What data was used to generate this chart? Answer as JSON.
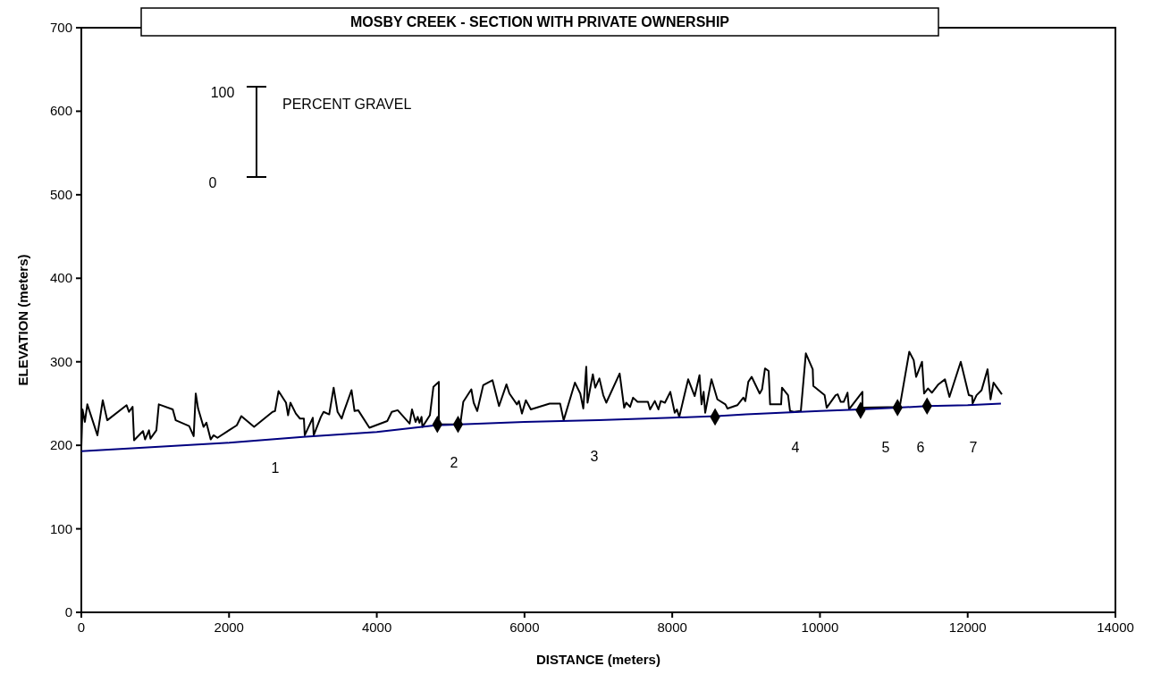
{
  "chart_data": {
    "type": "line",
    "title": "MOSBY CREEK - SECTION WITH PRIVATE OWNERSHIP",
    "xlabel": "DISTANCE (meters)",
    "ylabel": "ELEVATION (meters)",
    "xlim": [
      0,
      14000
    ],
    "xticks": [
      0,
      2000,
      4000,
      6000,
      8000,
      10000,
      12000,
      14000
    ],
    "ylim": [
      0,
      700
    ],
    "yticks": [
      0,
      100,
      200,
      300,
      400,
      500,
      600,
      700
    ],
    "grid": false,
    "series": [
      {
        "color": "#000000",
        "x": [
          0,
          16,
          48,
          81,
          218,
          290,
          351,
          613,
          645,
          694,
          714,
          835,
          863,
          916,
          936,
          1016,
          1049,
          1238,
          1278,
          1460,
          1521,
          1549,
          1581,
          1654,
          1694,
          1751,
          1791,
          1843,
          2105,
          2166,
          2339,
          2589,
          2622,
          2670,
          2771,
          2799,
          2831,
          2904,
          2960,
          3013,
          3025,
          3134,
          3146,
          3243,
          3280,
          3356,
          3416,
          3469,
          3525,
          3557,
          3658,
          3699,
          3748,
          3900,
          4021,
          4142,
          4203,
          4283,
          4445,
          4477,
          4525,
          4554,
          4578,
          4606,
          4618,
          4719,
          4767,
          4840,
          4840,
          5130,
          5171,
          5280,
          5312,
          5360,
          5441,
          5566,
          5655,
          5756,
          5796,
          5897,
          5925,
          5965,
          6018,
          6086,
          6340,
          6482,
          6530,
          6683,
          6755,
          6796,
          6836,
          6853,
          6925,
          6958,
          7014,
          7066,
          7107,
          7288,
          7349,
          7377,
          7429,
          7470,
          7530,
          7671,
          7700,
          7764,
          7813,
          7845,
          7901,
          7974,
          8034,
          8063,
          8095,
          8216,
          8304,
          8369,
          8397,
          8425,
          8446,
          8531,
          8611,
          8720,
          8748,
          8881,
          8962,
          8990,
          9030,
          9075,
          9184,
          9216,
          9256,
          9305,
          9325,
          9474,
          9486,
          9568,
          9595,
          9648,
          9741,
          9809,
          9902,
          9910,
          10063,
          10091,
          10212,
          10240,
          10281,
          10321,
          10373,
          10394,
          10575,
          10575,
          11080,
          11209,
          11269,
          11302,
          11382,
          11410,
          11463,
          11515,
          11604,
          11692,
          11753,
          11906,
          12015,
          12060,
          12067,
          12120,
          12188,
          12269,
          12309,
          12350,
          12463
        ],
        "values": [
          198,
          243,
          228,
          249,
          212,
          254,
          230,
          248,
          240,
          246,
          206,
          217,
          207,
          218,
          208,
          218,
          249,
          243,
          230,
          223,
          211,
          262,
          244,
          222,
          227,
          207,
          212,
          209,
          224,
          235,
          222,
          240,
          241,
          265,
          251,
          236,
          251,
          238,
          232,
          232,
          212,
          233,
          212,
          234,
          240,
          237,
          269,
          240,
          232,
          241,
          266,
          241,
          242,
          221,
          225,
          229,
          240,
          242,
          226,
          243,
          228,
          234,
          227,
          234,
          222,
          236,
          270,
          276,
          225,
          225,
          252,
          267,
          251,
          241,
          272,
          278,
          247,
          273,
          262,
          249,
          253,
          238,
          254,
          243,
          250,
          250,
          230,
          275,
          262,
          244,
          294,
          251,
          285,
          269,
          280,
          260,
          251,
          286,
          245,
          251,
          246,
          257,
          252,
          252,
          243,
          253,
          243,
          253,
          251,
          264,
          239,
          243,
          234,
          279,
          259,
          284,
          249,
          264,
          239,
          279,
          255,
          249,
          244,
          248,
          257,
          253,
          276,
          282,
          262,
          267,
          292,
          289,
          249,
          249,
          269,
          260,
          241,
          240,
          241,
          310,
          291,
          271,
          260,
          245,
          260,
          261,
          252,
          252,
          263,
          243,
          264,
          245,
          246,
          312,
          302,
          282,
          300,
          262,
          268,
          263,
          273,
          279,
          258,
          300,
          260,
          259,
          250,
          260,
          266,
          291,
          255,
          275,
          261
        ]
      },
      {
        "color": "#000080",
        "x": [
          0,
          1000,
          2000,
          3000,
          4000,
          4800,
          6000,
          7000,
          8000,
          8600,
          9000,
          10000,
          10550,
          11050,
          11450,
          12000,
          12450
        ],
        "values": [
          193,
          198,
          203,
          210,
          216,
          224,
          228,
          230,
          233,
          235,
          237,
          241,
          243,
          245,
          247,
          248,
          250
        ]
      },
      {
        "type": "scatter",
        "color": "#000000",
        "marker": "diamond",
        "x": [
          4820,
          5100,
          8580,
          10550,
          11050,
          11450
        ],
        "values": [
          225,
          225,
          234,
          242,
          245,
          247
        ]
      }
    ],
    "annotations": [
      "100",
      "0",
      "PERCENT GRAVEL",
      "1",
      "2",
      "3",
      "4",
      "5",
      "6",
      "7"
    ]
  }
}
